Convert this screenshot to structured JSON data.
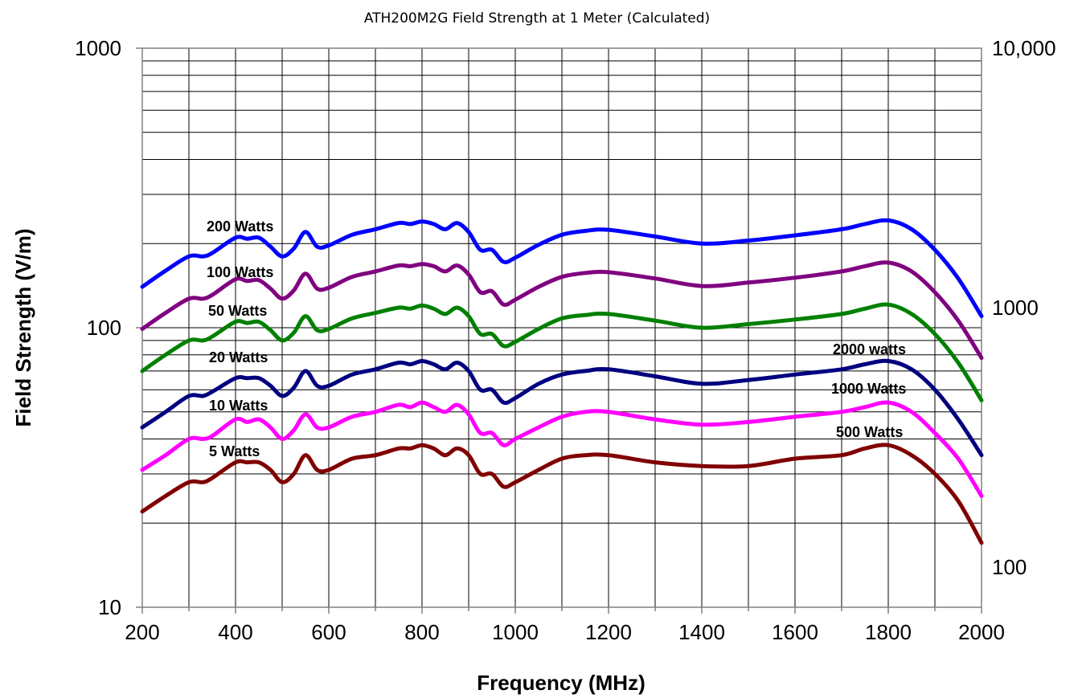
{
  "chart_data": {
    "type": "line",
    "title": "ATH200M2G Field Strength at 1 Meter (Calculated)",
    "xlabel": "Frequency (MHz)",
    "ylabel": "Field Strength (V/m)",
    "x_ticks": [
      "200",
      "400",
      "600",
      "800",
      "1000",
      "1200",
      "1400",
      "1600",
      "1800",
      "2000"
    ],
    "y_ticks": [
      "10",
      "100",
      "1000"
    ],
    "y2_ticks": [
      "100",
      "1000",
      "10,000"
    ],
    "xlim": [
      200,
      2000
    ],
    "ylim": [
      10,
      1000
    ],
    "yscale": "log",
    "y2lim": [
      70,
      10000
    ],
    "y2scale": "log",
    "grid": true,
    "x": [
      200,
      250,
      300,
      330,
      350,
      400,
      425,
      450,
      475,
      500,
      525,
      550,
      575,
      600,
      650,
      700,
      750,
      775,
      800,
      825,
      850,
      875,
      900,
      925,
      950,
      975,
      1000,
      1050,
      1100,
      1150,
      1200,
      1300,
      1400,
      1500,
      1600,
      1700,
      1750,
      1800,
      1850,
      1900,
      1950,
      2000
    ],
    "series": [
      {
        "name": "200 Watts",
        "color": "#0000ff",
        "values": [
          140,
          160,
          180,
          180,
          185,
          210,
          208,
          210,
          195,
          180,
          192,
          220,
          195,
          197,
          215,
          225,
          237,
          235,
          240,
          235,
          225,
          237,
          220,
          190,
          190,
          172,
          178,
          198,
          215,
          222,
          224,
          212,
          200,
          205,
          214,
          225,
          235,
          242,
          225,
          190,
          150,
          110
        ]
      },
      {
        "name": "100 Watts",
        "color": "#800080",
        "values": [
          99,
          113,
          127,
          127,
          131,
          149,
          147,
          148,
          138,
          127,
          136,
          156,
          138,
          139,
          152,
          159,
          167,
          166,
          169,
          166,
          159,
          167,
          155,
          134,
          135,
          121,
          126,
          140,
          152,
          157,
          158,
          150,
          141,
          145,
          151,
          159,
          166,
          171,
          159,
          134,
          106,
          78
        ]
      },
      {
        "name": "50 Watts",
        "color": "#008000",
        "values": [
          70,
          80,
          90,
          90,
          93,
          105,
          104,
          105,
          98,
          90,
          96,
          110,
          98,
          99,
          108,
          113,
          118,
          117,
          120,
          117,
          112,
          118,
          110,
          95,
          95,
          86,
          89,
          99,
          108,
          111,
          112,
          106,
          100,
          103,
          107,
          112,
          117,
          121,
          112,
          95,
          75,
          55
        ]
      },
      {
        "name": "20 Watts",
        "color": "#00007f",
        "values": [
          44,
          50,
          57,
          57,
          59,
          66,
          66,
          66,
          62,
          57,
          61,
          70,
          62,
          62,
          68,
          71,
          75,
          74,
          76,
          74,
          71,
          75,
          70,
          60,
          60,
          54,
          56,
          63,
          68,
          70,
          71,
          67,
          63,
          65,
          68,
          71,
          74,
          76,
          71,
          60,
          47,
          35
        ]
      },
      {
        "name": "10 Watts",
        "color": "#ff00ff",
        "values": [
          31,
          35,
          40,
          40,
          41,
          47,
          46,
          47,
          44,
          40,
          43,
          49,
          44,
          44,
          48,
          50,
          53,
          52,
          54,
          52,
          50,
          53,
          49,
          42,
          42,
          38,
          40,
          44,
          48,
          50,
          50,
          47,
          45,
          46,
          48,
          50,
          52,
          54,
          50,
          42,
          34,
          25
        ]
      },
      {
        "name": "5 Watts",
        "color": "#800000",
        "values": [
          22,
          25,
          28,
          28,
          29,
          33,
          33,
          33,
          31,
          28,
          30,
          35,
          31,
          31,
          34,
          35,
          37,
          37,
          38,
          37,
          35,
          37,
          35,
          30,
          30,
          27,
          28,
          31,
          34,
          35,
          35,
          33,
          32,
          32,
          34,
          35,
          37,
          38,
          35,
          30,
          24,
          17
        ]
      }
    ],
    "right_labels": [
      "2000 watts",
      "1000 Watts",
      "500 Watts"
    ]
  }
}
